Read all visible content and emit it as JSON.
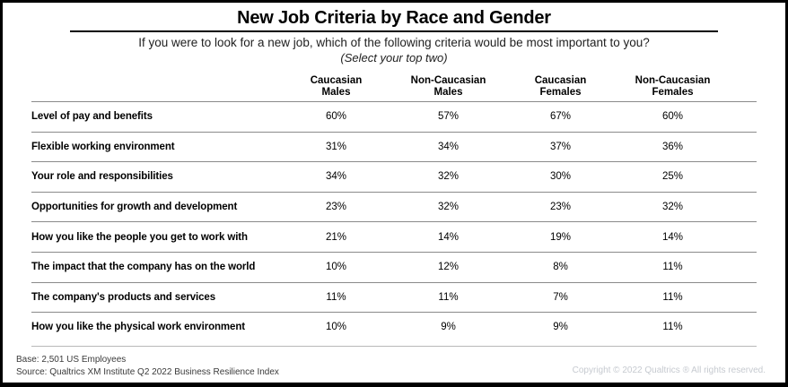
{
  "title": "New Job Criteria by Race and Gender",
  "subtitle": "If you were to look for a new job, which of the following criteria would be most important to you?",
  "subtitle_note": "(Select your top two)",
  "header": {
    "labels": [
      "Caucasian\nMales",
      "Non-Caucasian\nMales",
      "Caucasian\nFemales",
      "Non-Caucasian\nFemales"
    ]
  },
  "chart_data": {
    "type": "table",
    "title": "New Job Criteria by Race and Gender",
    "columns": [
      "Caucasian Males",
      "Non-Caucasian Males",
      "Caucasian Females",
      "Non-Caucasian Females"
    ],
    "value_format": "percent",
    "rows": [
      {
        "label": "Level of pay and benefits",
        "values": [
          "60%",
          "57%",
          "67%",
          "60%"
        ]
      },
      {
        "label": "Flexible working environment",
        "values": [
          "31%",
          "34%",
          "37%",
          "36%"
        ]
      },
      {
        "label": "Your role and responsibilities",
        "values": [
          "34%",
          "32%",
          "30%",
          "25%"
        ]
      },
      {
        "label": "Opportunities for growth and development",
        "values": [
          "23%",
          "32%",
          "23%",
          "32%"
        ]
      },
      {
        "label": "How you like the people you get to work with",
        "values": [
          "21%",
          "14%",
          "19%",
          "14%"
        ]
      },
      {
        "label": "The impact that the company has on the world",
        "values": [
          "10%",
          "12%",
          "8%",
          "11%"
        ]
      },
      {
        "label": "The company's products and services",
        "values": [
          "11%",
          "11%",
          "7%",
          "11%"
        ]
      },
      {
        "label": "How you like the physical work environment",
        "values": [
          "10%",
          "9%",
          "9%",
          "11%"
        ]
      }
    ]
  },
  "footer": {
    "base": "Base: 2,501 US Employees",
    "source": "Source: Qualtrics XM Institute Q2 2022 Business Resilience Index",
    "copyright": "Copyright © 2022 Qualtrics ® All rights reserved."
  },
  "colors": {
    "text": "#000000",
    "title_rule": "#000000",
    "row_rule": "#8a8a8a",
    "footer_rule": "#b8b8b8",
    "copyright_text": "#c6cad0"
  }
}
